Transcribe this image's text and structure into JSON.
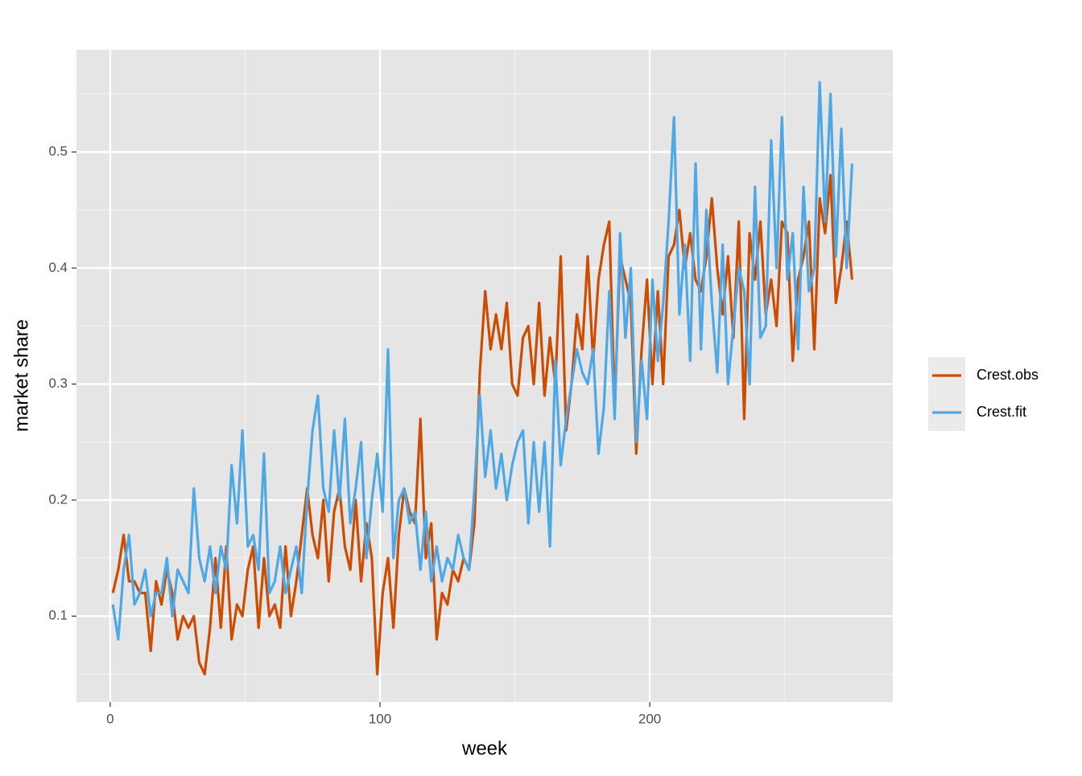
{
  "chart_data": {
    "type": "line",
    "x_label": "week",
    "y_label": "market share",
    "x": [
      1,
      3,
      5,
      7,
      9,
      11,
      13,
      15,
      17,
      19,
      21,
      23,
      25,
      27,
      29,
      31,
      33,
      35,
      37,
      39,
      41,
      43,
      45,
      47,
      49,
      51,
      53,
      55,
      57,
      59,
      61,
      63,
      65,
      67,
      69,
      71,
      73,
      75,
      77,
      79,
      81,
      83,
      85,
      87,
      89,
      91,
      93,
      95,
      97,
      99,
      101,
      103,
      105,
      107,
      109,
      111,
      113,
      115,
      117,
      119,
      121,
      123,
      125,
      127,
      129,
      131,
      133,
      135,
      137,
      139,
      141,
      143,
      145,
      147,
      149,
      151,
      153,
      155,
      157,
      159,
      161,
      163,
      165,
      167,
      169,
      171,
      173,
      175,
      177,
      179,
      181,
      183,
      185,
      187,
      189,
      191,
      193,
      195,
      197,
      199,
      201,
      203,
      205,
      207,
      209,
      211,
      213,
      215,
      217,
      219,
      221,
      223,
      225,
      227,
      229,
      231,
      233,
      235,
      237,
      239,
      241,
      243,
      245,
      247,
      249,
      251,
      253,
      255,
      257,
      259,
      261,
      263,
      265,
      267,
      269,
      271,
      273,
      275
    ],
    "series": [
      {
        "name": "Crest.obs",
        "color": "#cc4c02",
        "values": [
          0.12,
          0.14,
          0.17,
          0.13,
          0.13,
          0.12,
          0.12,
          0.07,
          0.13,
          0.11,
          0.14,
          0.12,
          0.08,
          0.1,
          0.09,
          0.1,
          0.06,
          0.05,
          0.09,
          0.15,
          0.09,
          0.16,
          0.08,
          0.11,
          0.1,
          0.14,
          0.16,
          0.09,
          0.15,
          0.1,
          0.11,
          0.09,
          0.16,
          0.1,
          0.13,
          0.17,
          0.21,
          0.17,
          0.15,
          0.2,
          0.13,
          0.19,
          0.21,
          0.16,
          0.14,
          0.2,
          0.13,
          0.18,
          0.15,
          0.05,
          0.12,
          0.15,
          0.09,
          0.17,
          0.21,
          0.19,
          0.18,
          0.27,
          0.15,
          0.18,
          0.08,
          0.12,
          0.11,
          0.14,
          0.13,
          0.15,
          0.14,
          0.18,
          0.31,
          0.38,
          0.33,
          0.36,
          0.33,
          0.37,
          0.3,
          0.29,
          0.34,
          0.35,
          0.3,
          0.37,
          0.29,
          0.34,
          0.3,
          0.41,
          0.26,
          0.3,
          0.36,
          0.33,
          0.41,
          0.32,
          0.39,
          0.42,
          0.44,
          0.28,
          0.41,
          0.39,
          0.37,
          0.24,
          0.33,
          0.39,
          0.3,
          0.38,
          0.3,
          0.41,
          0.42,
          0.45,
          0.4,
          0.43,
          0.39,
          0.38,
          0.41,
          0.46,
          0.4,
          0.36,
          0.41,
          0.34,
          0.44,
          0.27,
          0.43,
          0.39,
          0.44,
          0.36,
          0.39,
          0.35,
          0.44,
          0.43,
          0.32,
          0.39,
          0.41,
          0.44,
          0.33,
          0.46,
          0.43,
          0.48,
          0.37,
          0.4,
          0.44,
          0.39
        ]
      },
      {
        "name": "Crest.fit",
        "color": "#4ea8e6",
        "values": [
          0.11,
          0.08,
          0.14,
          0.17,
          0.11,
          0.12,
          0.14,
          0.1,
          0.12,
          0.12,
          0.15,
          0.1,
          0.14,
          0.13,
          0.12,
          0.21,
          0.15,
          0.13,
          0.16,
          0.12,
          0.16,
          0.14,
          0.23,
          0.18,
          0.26,
          0.16,
          0.17,
          0.14,
          0.24,
          0.12,
          0.13,
          0.16,
          0.12,
          0.14,
          0.16,
          0.12,
          0.2,
          0.26,
          0.29,
          0.21,
          0.19,
          0.26,
          0.2,
          0.27,
          0.18,
          0.21,
          0.25,
          0.15,
          0.2,
          0.24,
          0.19,
          0.33,
          0.15,
          0.2,
          0.21,
          0.18,
          0.19,
          0.14,
          0.19,
          0.13,
          0.16,
          0.13,
          0.15,
          0.14,
          0.17,
          0.15,
          0.14,
          0.21,
          0.29,
          0.22,
          0.26,
          0.21,
          0.24,
          0.2,
          0.23,
          0.25,
          0.26,
          0.18,
          0.25,
          0.19,
          0.25,
          0.16,
          0.32,
          0.23,
          0.27,
          0.3,
          0.33,
          0.31,
          0.3,
          0.33,
          0.24,
          0.28,
          0.38,
          0.27,
          0.43,
          0.34,
          0.4,
          0.25,
          0.32,
          0.27,
          0.39,
          0.32,
          0.37,
          0.44,
          0.53,
          0.36,
          0.42,
          0.32,
          0.49,
          0.33,
          0.45,
          0.37,
          0.31,
          0.42,
          0.3,
          0.35,
          0.4,
          0.38,
          0.3,
          0.47,
          0.34,
          0.35,
          0.51,
          0.4,
          0.53,
          0.39,
          0.43,
          0.33,
          0.47,
          0.38,
          0.4,
          0.56,
          0.44,
          0.55,
          0.41,
          0.52,
          0.4,
          0.49
        ]
      }
    ],
    "xlim": [
      -12.5,
      290.1
    ],
    "xticks": [
      0,
      100,
      200
    ],
    "ylim": [
      0.026,
      0.588
    ],
    "yticks": [
      0.1,
      0.2,
      0.3,
      0.4,
      0.5
    ],
    "grid": true,
    "legend": "right"
  }
}
